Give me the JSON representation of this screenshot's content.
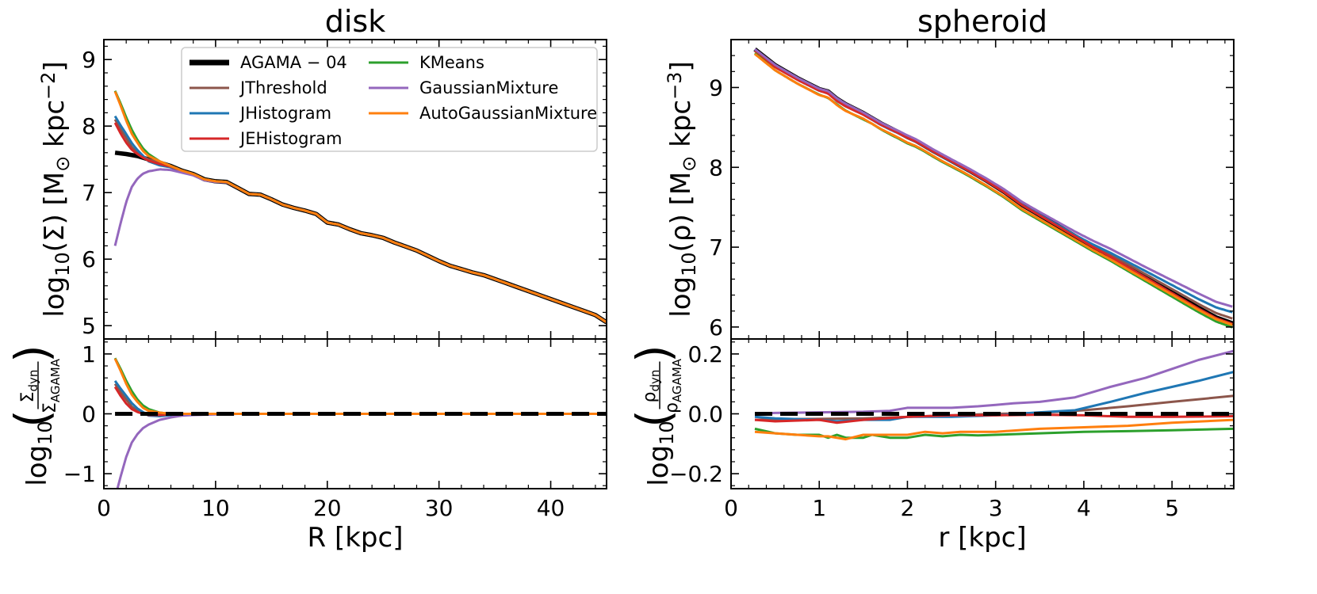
{
  "colors": {
    "AGAMA - 04": "#000000",
    "JThreshold": "#8c564b",
    "JHistogram": "#1f77b4",
    "JEHistogram": "#d62728",
    "KMeans": "#2ca02c",
    "GaussianMixture": "#9467bd",
    "AutoGaussianMixture": "#ff7f0e"
  },
  "legend": {
    "placement": "upper-center",
    "columns": [
      [
        "AGAMA − 04",
        "JThreshold",
        "JHistogram",
        "JEHistogram"
      ],
      [
        "KMeans",
        "GaussianMixture",
        "AutoGaussianMixture"
      ]
    ],
    "keys": [
      [
        "AGAMA - 04",
        "JThreshold",
        "JHistogram",
        "JEHistogram"
      ],
      [
        "KMeans",
        "GaussianMixture",
        "AutoGaussianMixture"
      ]
    ]
  },
  "chart_data": [
    {
      "type": "line",
      "title": "disk",
      "xlabel": "R [kpc]",
      "ylabel_main": "log10(Σ) [M⊙ kpc−2]",
      "ylabel_ratio": "log10(Σdyn / ΣAGAMA)",
      "xlim": [
        0,
        45
      ],
      "ylim_main": [
        4.8,
        9.3
      ],
      "ylim_ratio": [
        -1.25,
        1.25
      ],
      "xticks": [
        0,
        10,
        20,
        30,
        40
      ],
      "yticks_main": [
        5,
        6,
        7,
        8,
        9
      ],
      "yticks_ratio": [
        -1,
        0,
        1
      ],
      "reference_line": 0,
      "agama": {
        "name": "AGAMA - 04",
        "x": [
          1,
          2,
          3,
          4,
          5,
          6,
          7,
          8,
          9,
          10,
          11,
          12,
          13,
          14,
          15,
          16,
          17,
          18,
          19,
          20,
          21,
          22,
          23,
          24,
          25,
          26,
          27,
          28,
          29,
          30,
          31,
          32,
          33,
          34,
          35,
          36,
          37,
          38,
          39,
          40,
          41,
          42,
          43,
          44,
          45
        ],
        "y": [
          7.6,
          7.58,
          7.55,
          7.5,
          7.45,
          7.4,
          7.33,
          7.28,
          7.2,
          7.17,
          7.16,
          7.07,
          6.98,
          6.97,
          6.9,
          6.82,
          6.77,
          6.73,
          6.68,
          6.55,
          6.52,
          6.45,
          6.39,
          6.36,
          6.32,
          6.25,
          6.19,
          6.13,
          6.05,
          5.97,
          5.9,
          5.85,
          5.8,
          5.76,
          5.7,
          5.64,
          5.58,
          5.52,
          5.46,
          5.4,
          5.34,
          5.28,
          5.22,
          5.16,
          5.05
        ]
      },
      "series": [
        {
          "name": "JThreshold",
          "x": [
            1,
            1.5,
            2,
            2.5,
            3,
            3.5,
            4,
            5,
            6,
            8,
            12,
            20,
            45
          ],
          "ratio": [
            0.5,
            0.36,
            0.24,
            0.12,
            0.05,
            0.02,
            0.0,
            0.0,
            0.0,
            0.0,
            0.0,
            0.0,
            0.0
          ]
        },
        {
          "name": "JHistogram",
          "x": [
            1,
            1.5,
            2,
            2.5,
            3,
            3.5,
            4,
            5,
            6,
            8,
            12,
            20,
            45
          ],
          "ratio": [
            0.55,
            0.42,
            0.3,
            0.18,
            0.09,
            0.03,
            -0.03,
            -0.04,
            -0.02,
            0.0,
            0.0,
            0.0,
            0.0
          ]
        },
        {
          "name": "JEHistogram",
          "x": [
            1,
            1.5,
            2,
            2.5,
            3,
            3.5,
            4,
            5,
            6,
            8,
            12,
            20,
            45
          ],
          "ratio": [
            0.45,
            0.3,
            0.17,
            0.08,
            0.03,
            0.0,
            -0.02,
            -0.02,
            -0.01,
            0.0,
            0.0,
            0.0,
            0.0
          ]
        },
        {
          "name": "KMeans",
          "x": [
            1,
            1.5,
            2,
            2.5,
            3,
            3.5,
            4,
            5,
            6,
            8,
            12,
            20,
            45
          ],
          "ratio": [
            0.93,
            0.75,
            0.55,
            0.38,
            0.24,
            0.14,
            0.08,
            0.02,
            0.0,
            0.0,
            0.0,
            0.0,
            0.0
          ]
        },
        {
          "name": "GaussianMixture",
          "x": [
            1,
            1.5,
            2,
            2.5,
            3,
            3.5,
            4,
            5,
            6,
            7,
            8,
            10,
            12,
            20,
            45
          ],
          "ratio": [
            -1.4,
            -1.05,
            -0.72,
            -0.48,
            -0.34,
            -0.24,
            -0.18,
            -0.1,
            -0.06,
            -0.03,
            -0.02,
            -0.01,
            0.0,
            0.0,
            0.0
          ]
        },
        {
          "name": "AutoGaussianMixture",
          "x": [
            1,
            1.5,
            2,
            2.5,
            3,
            3.5,
            4,
            5,
            6,
            8,
            12,
            20,
            45
          ],
          "ratio": [
            0.92,
            0.72,
            0.5,
            0.32,
            0.2,
            0.1,
            0.05,
            0.02,
            0.0,
            0.0,
            0.0,
            0.0,
            0.0
          ]
        }
      ]
    },
    {
      "type": "line",
      "title": "spheroid",
      "xlabel": "r [kpc]",
      "ylabel_main": "log10(ρ) [M⊙ kpc−3]",
      "ylabel_ratio": "log10(ρdyn / ρAGAMA)",
      "xlim": [
        0,
        5.7
      ],
      "ylim_main": [
        5.85,
        9.6
      ],
      "ylim_ratio": [
        -0.25,
        0.25
      ],
      "xticks": [
        0,
        1,
        2,
        3,
        4,
        5
      ],
      "yticks_main": [
        6,
        7,
        8,
        9
      ],
      "yticks_ratio": [
        -0.2,
        0.0,
        0.2
      ],
      "yticklabels_ratio": [
        "−0.2",
        "0.0",
        "0.2"
      ],
      "reference_line": 0,
      "agama": {
        "name": "AGAMA - 04",
        "x": [
          0.27,
          0.5,
          0.75,
          1.0,
          1.1,
          1.2,
          1.3,
          1.5,
          1.7,
          1.9,
          2.0,
          2.1,
          2.3,
          2.5,
          2.7,
          2.9,
          3.1,
          3.3,
          3.5,
          3.7,
          3.9,
          4.1,
          4.3,
          4.5,
          4.7,
          4.9,
          5.1,
          5.3,
          5.5,
          5.7
        ],
        "y": [
          9.48,
          9.28,
          9.12,
          8.98,
          8.95,
          8.86,
          8.79,
          8.68,
          8.55,
          8.44,
          8.38,
          8.33,
          8.2,
          8.08,
          7.96,
          7.83,
          7.69,
          7.53,
          7.4,
          7.27,
          7.14,
          7.01,
          6.89,
          6.76,
          6.63,
          6.5,
          6.37,
          6.24,
          6.12,
          6.04
        ]
      },
      "series": [
        {
          "name": "JThreshold",
          "x": [
            0.27,
            0.5,
            1.0,
            1.5,
            2.0,
            2.5,
            3.0,
            3.5,
            4.0,
            4.5,
            5.0,
            5.7
          ],
          "ratio": [
            -0.02,
            -0.018,
            -0.017,
            -0.015,
            -0.01,
            -0.005,
            0.0,
            0.003,
            0.012,
            0.025,
            0.04,
            0.06
          ]
        },
        {
          "name": "JHistogram",
          "x": [
            0.27,
            0.5,
            1.0,
            1.2,
            1.5,
            1.8,
            2.0,
            2.5,
            3.0,
            3.5,
            3.9,
            4.3,
            4.7,
            5.0,
            5.3,
            5.7
          ],
          "ratio": [
            -0.01,
            -0.015,
            -0.02,
            -0.025,
            -0.02,
            -0.02,
            -0.01,
            -0.01,
            -0.005,
            0.005,
            0.012,
            0.04,
            0.07,
            0.09,
            0.11,
            0.14
          ]
        },
        {
          "name": "JEHistogram",
          "x": [
            0.27,
            0.5,
            1.0,
            1.2,
            1.5,
            2.0,
            2.5,
            3.0,
            3.5,
            4.0,
            4.5,
            5.0,
            5.7
          ],
          "ratio": [
            -0.02,
            -0.025,
            -0.02,
            -0.03,
            -0.02,
            -0.01,
            -0.005,
            -0.005,
            -0.003,
            -0.005,
            -0.01,
            -0.01,
            -0.008
          ]
        },
        {
          "name": "KMeans",
          "x": [
            0.27,
            0.5,
            0.75,
            1.0,
            1.1,
            1.2,
            1.3,
            1.5,
            1.6,
            1.8,
            2.0,
            2.2,
            2.4,
            2.6,
            2.8,
            3.0,
            3.5,
            4.0,
            4.5,
            5.0,
            5.7
          ],
          "ratio": [
            -0.05,
            -0.065,
            -0.07,
            -0.07,
            -0.08,
            -0.07,
            -0.08,
            -0.08,
            -0.07,
            -0.08,
            -0.08,
            -0.07,
            -0.075,
            -0.07,
            -0.072,
            -0.07,
            -0.065,
            -0.06,
            -0.058,
            -0.055,
            -0.05
          ]
        },
        {
          "name": "GaussianMixture",
          "x": [
            0.27,
            0.5,
            1.0,
            1.5,
            1.8,
            2.0,
            2.5,
            2.8,
            3.0,
            3.2,
            3.5,
            3.9,
            4.3,
            4.7,
            5.0,
            5.3,
            5.7
          ],
          "ratio": [
            0.0,
            0.003,
            0.005,
            0.007,
            0.01,
            0.02,
            0.02,
            0.025,
            0.03,
            0.035,
            0.04,
            0.055,
            0.09,
            0.12,
            0.15,
            0.18,
            0.21
          ]
        },
        {
          "name": "AutoGaussianMixture",
          "x": [
            0.27,
            0.5,
            1.0,
            1.1,
            1.3,
            1.5,
            1.7,
            2.0,
            2.2,
            2.4,
            2.6,
            2.8,
            3.0,
            3.5,
            4.0,
            4.5,
            5.0,
            5.7
          ],
          "ratio": [
            -0.06,
            -0.065,
            -0.075,
            -0.075,
            -0.085,
            -0.07,
            -0.07,
            -0.07,
            -0.06,
            -0.065,
            -0.06,
            -0.06,
            -0.06,
            -0.05,
            -0.045,
            -0.04,
            -0.03,
            -0.02
          ]
        }
      ]
    }
  ]
}
